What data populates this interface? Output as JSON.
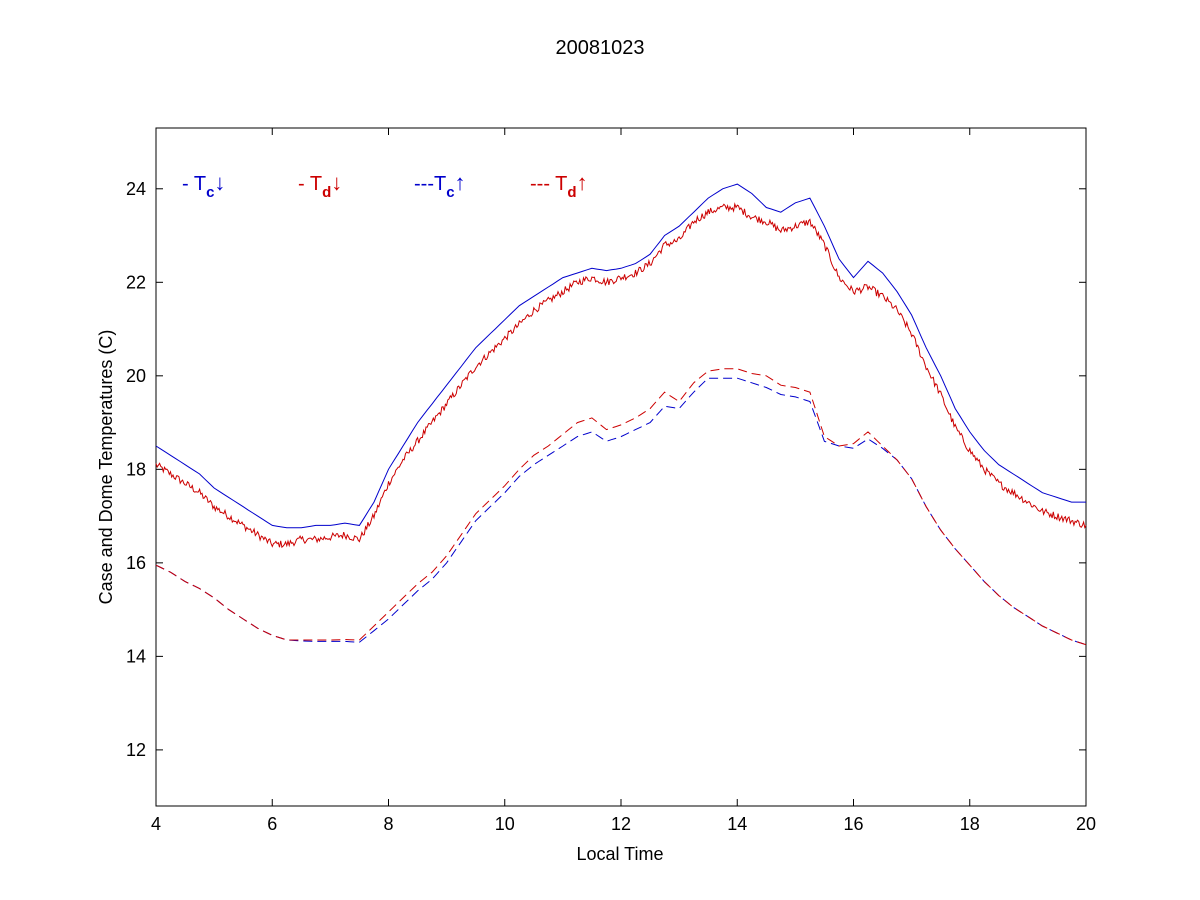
{
  "chart_data": {
    "type": "line",
    "title": "20081023",
    "xlabel": "Local Time",
    "ylabel": "Case and Dome Temperatures (C)",
    "xlim": [
      4,
      20
    ],
    "ylim": [
      10.8,
      25.3
    ],
    "xticks": [
      4,
      6,
      8,
      10,
      12,
      14,
      16,
      18,
      20
    ],
    "yticks": [
      12,
      14,
      16,
      18,
      20,
      22,
      24
    ],
    "grid": false,
    "legend_position": "top-left",
    "series": [
      {
        "name": "- Tc↓",
        "legend": {
          "prefix": "- ",
          "sub": "c",
          "arrow": "↓"
        },
        "color": "#0000cc",
        "style": "solid",
        "x": [
          4.0,
          4.25,
          4.5,
          4.75,
          5.0,
          5.25,
          5.5,
          5.75,
          6.0,
          6.25,
          6.5,
          6.75,
          7.0,
          7.25,
          7.5,
          7.75,
          8.0,
          8.25,
          8.5,
          8.75,
          9.0,
          9.25,
          9.5,
          9.75,
          10.0,
          10.25,
          10.5,
          10.75,
          11.0,
          11.25,
          11.5,
          11.75,
          12.0,
          12.25,
          12.5,
          12.75,
          13.0,
          13.25,
          13.5,
          13.75,
          14.0,
          14.25,
          14.5,
          14.75,
          15.0,
          15.25,
          15.5,
          15.75,
          16.0,
          16.25,
          16.5,
          16.75,
          17.0,
          17.25,
          17.5,
          17.75,
          18.0,
          18.25,
          18.5,
          18.75,
          19.0,
          19.25,
          19.5,
          19.75,
          20.0
        ],
        "y": [
          18.5,
          18.3,
          18.1,
          17.9,
          17.6,
          17.4,
          17.2,
          17.0,
          16.8,
          16.75,
          16.75,
          16.8,
          16.8,
          16.85,
          16.8,
          17.3,
          18.0,
          18.5,
          19.0,
          19.4,
          19.8,
          20.2,
          20.6,
          20.9,
          21.2,
          21.5,
          21.7,
          21.9,
          22.1,
          22.2,
          22.3,
          22.25,
          22.3,
          22.4,
          22.6,
          23.0,
          23.2,
          23.5,
          23.8,
          24.0,
          24.1,
          23.9,
          23.6,
          23.5,
          23.7,
          23.8,
          23.2,
          22.5,
          22.1,
          22.45,
          22.2,
          21.8,
          21.3,
          20.6,
          20.0,
          19.3,
          18.8,
          18.4,
          18.1,
          17.9,
          17.7,
          17.5,
          17.4,
          17.3,
          17.3
        ]
      },
      {
        "name": "- Td↓",
        "legend": {
          "prefix": "- ",
          "sub": "d",
          "arrow": "↓"
        },
        "color": "#cc0000",
        "style": "solid",
        "noise": 0.08,
        "x": [
          4.0,
          4.25,
          4.5,
          4.75,
          5.0,
          5.25,
          5.5,
          5.75,
          6.0,
          6.25,
          6.5,
          6.75,
          7.0,
          7.25,
          7.5,
          7.75,
          8.0,
          8.25,
          8.5,
          8.75,
          9.0,
          9.25,
          9.5,
          9.75,
          10.0,
          10.25,
          10.5,
          10.75,
          11.0,
          11.25,
          11.5,
          11.75,
          12.0,
          12.25,
          12.5,
          12.75,
          13.0,
          13.25,
          13.5,
          13.75,
          14.0,
          14.25,
          14.5,
          14.75,
          15.0,
          15.25,
          15.5,
          15.75,
          16.0,
          16.25,
          16.5,
          16.75,
          17.0,
          17.25,
          17.5,
          17.75,
          18.0,
          18.25,
          18.5,
          18.75,
          19.0,
          19.25,
          19.5,
          19.75,
          20.0
        ],
        "y": [
          18.1,
          17.9,
          17.7,
          17.5,
          17.2,
          17.0,
          16.8,
          16.6,
          16.4,
          16.4,
          16.5,
          16.5,
          16.55,
          16.6,
          16.5,
          17.0,
          17.7,
          18.2,
          18.6,
          19.0,
          19.4,
          19.8,
          20.2,
          20.5,
          20.8,
          21.1,
          21.4,
          21.6,
          21.8,
          22.0,
          22.1,
          22.0,
          22.1,
          22.2,
          22.4,
          22.8,
          22.9,
          23.3,
          23.5,
          23.6,
          23.6,
          23.4,
          23.3,
          23.1,
          23.2,
          23.3,
          22.8,
          22.1,
          21.8,
          21.9,
          21.7,
          21.4,
          20.9,
          20.2,
          19.6,
          18.9,
          18.4,
          18.0,
          17.7,
          17.5,
          17.3,
          17.1,
          17.0,
          16.9,
          16.8
        ]
      },
      {
        "name": "---Tc↑",
        "legend": {
          "prefix": "---",
          "sub": "c",
          "arrow": "↑"
        },
        "color": "#0000cc",
        "style": "dashed",
        "x": [
          4.0,
          4.25,
          4.5,
          4.75,
          5.0,
          5.25,
          5.5,
          5.75,
          6.0,
          6.25,
          6.5,
          6.75,
          7.0,
          7.25,
          7.5,
          7.75,
          8.0,
          8.25,
          8.5,
          8.75,
          9.0,
          9.25,
          9.5,
          9.75,
          10.0,
          10.25,
          10.5,
          10.75,
          11.0,
          11.25,
          11.5,
          11.75,
          12.0,
          12.25,
          12.5,
          12.75,
          13.0,
          13.25,
          13.5,
          13.75,
          14.0,
          14.25,
          14.5,
          14.75,
          15.0,
          15.25,
          15.5,
          15.75,
          16.0,
          16.25,
          16.5,
          16.75,
          17.0,
          17.25,
          17.5,
          17.75,
          18.0,
          18.25,
          18.5,
          18.75,
          19.0,
          19.25,
          19.5,
          19.75,
          20.0
        ],
        "y": [
          15.95,
          15.8,
          15.6,
          15.45,
          15.25,
          15.0,
          14.8,
          14.6,
          14.45,
          14.35,
          14.33,
          14.32,
          14.32,
          14.32,
          14.3,
          14.55,
          14.8,
          15.1,
          15.4,
          15.65,
          16.0,
          16.45,
          16.9,
          17.2,
          17.5,
          17.85,
          18.1,
          18.3,
          18.5,
          18.7,
          18.8,
          18.6,
          18.7,
          18.85,
          19.0,
          19.35,
          19.3,
          19.65,
          19.95,
          19.95,
          19.95,
          19.85,
          19.75,
          19.6,
          19.55,
          19.45,
          18.6,
          18.5,
          18.45,
          18.65,
          18.45,
          18.2,
          17.8,
          17.2,
          16.7,
          16.3,
          15.95,
          15.6,
          15.3,
          15.05,
          14.85,
          14.65,
          14.5,
          14.35,
          14.25
        ]
      },
      {
        "name": "--- Td↑",
        "legend": {
          "prefix": "--- ",
          "sub": "d",
          "arrow": "↑"
        },
        "color": "#cc0000",
        "style": "dashed",
        "x": [
          4.0,
          4.25,
          4.5,
          4.75,
          5.0,
          5.25,
          5.5,
          5.75,
          6.0,
          6.25,
          6.5,
          6.75,
          7.0,
          7.25,
          7.5,
          7.75,
          8.0,
          8.25,
          8.5,
          8.75,
          9.0,
          9.25,
          9.5,
          9.75,
          10.0,
          10.25,
          10.5,
          10.75,
          11.0,
          11.25,
          11.5,
          11.75,
          12.0,
          12.25,
          12.5,
          12.75,
          13.0,
          13.25,
          13.5,
          13.75,
          14.0,
          14.25,
          14.5,
          14.75,
          15.0,
          15.25,
          15.5,
          15.75,
          16.0,
          16.25,
          16.5,
          16.75,
          17.0,
          17.25,
          17.5,
          17.75,
          18.0,
          18.25,
          18.5,
          18.75,
          19.0,
          19.25,
          19.5,
          19.75,
          20.0
        ],
        "y": [
          15.95,
          15.8,
          15.6,
          15.45,
          15.25,
          15.0,
          14.8,
          14.6,
          14.45,
          14.35,
          14.35,
          14.35,
          14.35,
          14.36,
          14.35,
          14.65,
          14.95,
          15.25,
          15.55,
          15.8,
          16.15,
          16.6,
          17.05,
          17.35,
          17.65,
          18.0,
          18.3,
          18.5,
          18.75,
          19.0,
          19.1,
          18.85,
          18.95,
          19.1,
          19.3,
          19.65,
          19.45,
          19.85,
          20.1,
          20.15,
          20.15,
          20.05,
          20.0,
          19.8,
          19.75,
          19.65,
          18.7,
          18.5,
          18.55,
          18.8,
          18.5,
          18.2,
          17.8,
          17.2,
          16.7,
          16.3,
          15.95,
          15.6,
          15.3,
          15.05,
          14.85,
          14.65,
          14.5,
          14.35,
          14.25
        ]
      }
    ]
  }
}
